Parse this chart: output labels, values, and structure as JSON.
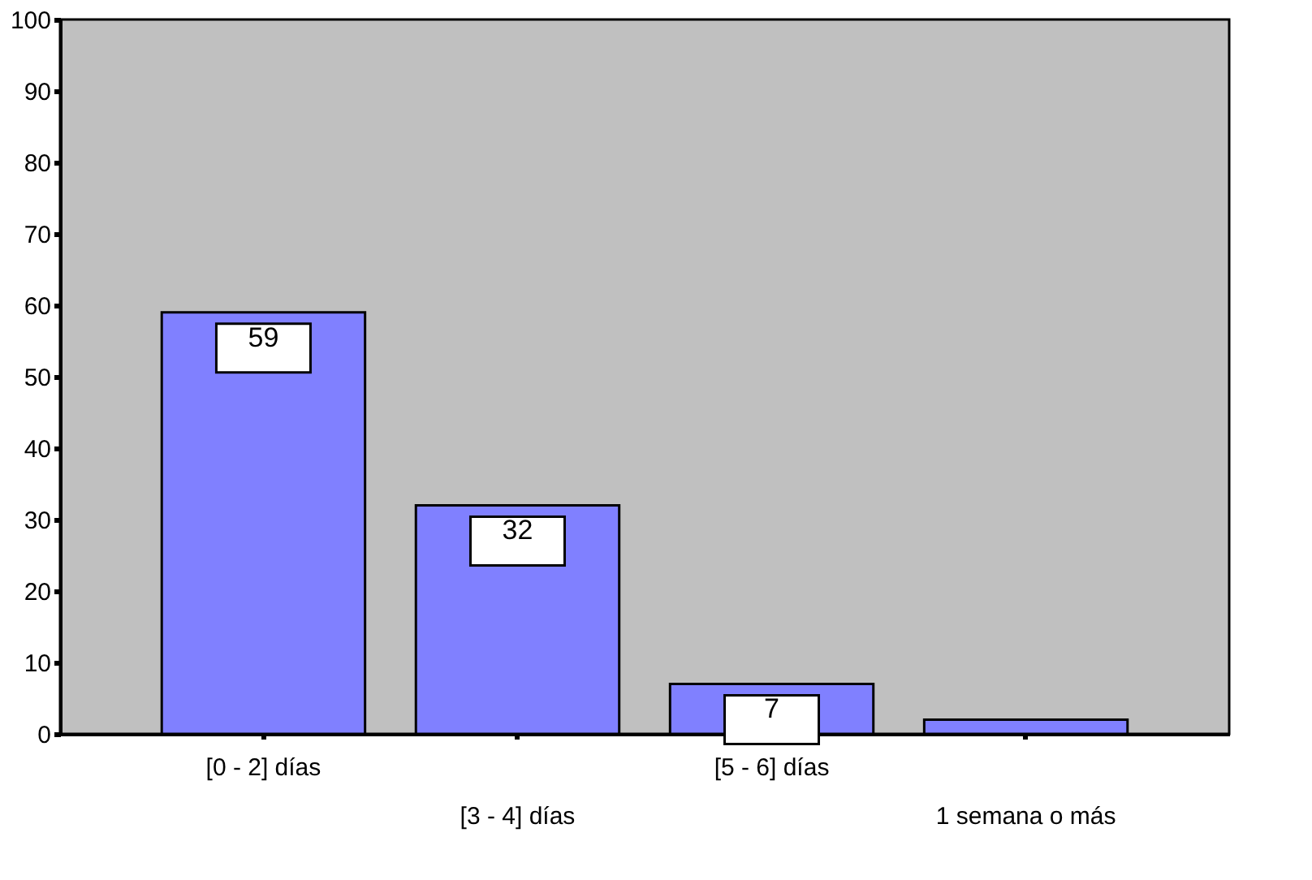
{
  "chart_data": {
    "type": "bar",
    "categories": [
      "[0 - 2] días",
      "[3 - 4] días",
      "[5 - 6] días",
      "1 semana o más"
    ],
    "values": [
      59,
      32,
      7,
      2
    ],
    "value_labels": [
      "59",
      "32",
      "7",
      null
    ],
    "color": "#8080ff",
    "ylim": [
      0,
      100
    ],
    "yticks": [
      0,
      10,
      20,
      30,
      40,
      50,
      60,
      70,
      80,
      90,
      100
    ],
    "grid": false
  }
}
